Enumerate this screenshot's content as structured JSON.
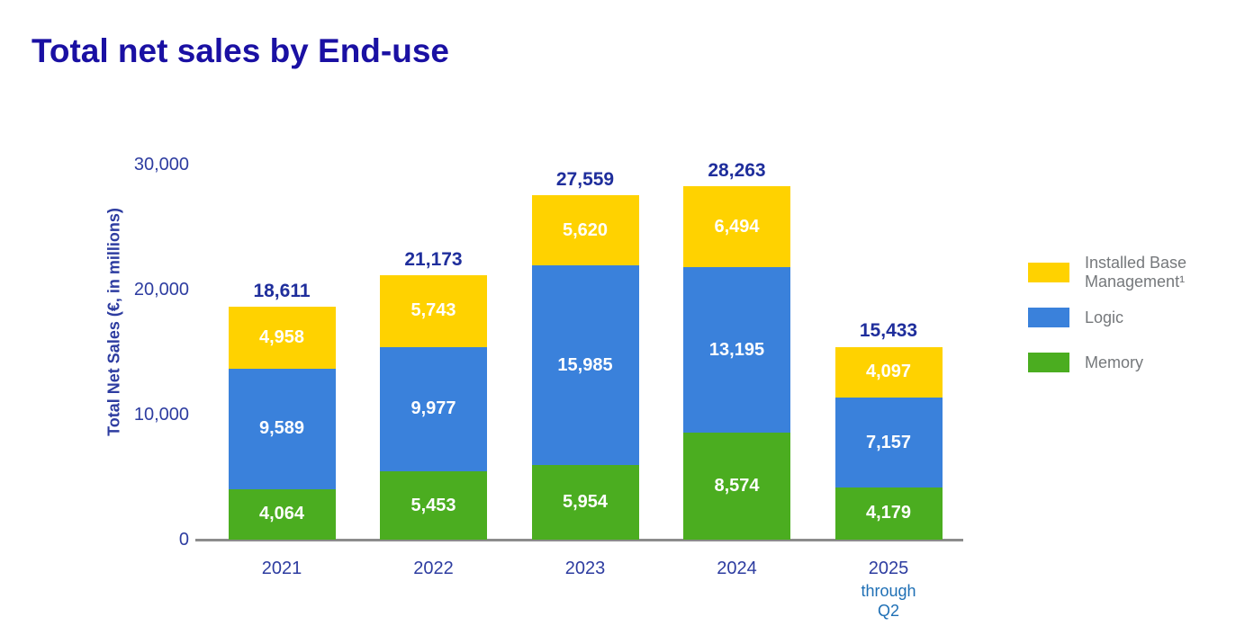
{
  "page": {
    "title": "Total net sales by End-use"
  },
  "chart_data": {
    "type": "bar",
    "stacked": true,
    "title": "Total net sales by End-use",
    "ylabel": "Total Net Sales (€, in millions)",
    "ylim": [
      0,
      30000
    ],
    "grid": false,
    "legend_position": "right",
    "yticks": [
      {
        "value": 0,
        "label": "0"
      },
      {
        "value": 10000,
        "label": "10,000"
      },
      {
        "value": 20000,
        "label": "20,000"
      },
      {
        "value": 30000,
        "label": "30,000"
      }
    ],
    "categories": [
      {
        "label": "2021",
        "sublines": []
      },
      {
        "label": "2022",
        "sublines": []
      },
      {
        "label": "2023",
        "sublines": []
      },
      {
        "label": "2024",
        "sublines": []
      },
      {
        "label": "2025",
        "sublines": [
          "through",
          "Q2"
        ]
      }
    ],
    "series": [
      {
        "key": "memory",
        "name": "Memory",
        "color": "#4bad20",
        "values": [
          4064,
          5453,
          5954,
          8574,
          4179
        ],
        "labels": [
          "4,064",
          "5,453",
          "5,954",
          "8,574",
          "4,179"
        ]
      },
      {
        "key": "logic",
        "name": "Logic",
        "color": "#3a81db",
        "values": [
          9589,
          9977,
          15985,
          13195,
          7157
        ],
        "labels": [
          "9,589",
          "9,977",
          "15,985",
          "13,195",
          "7,157"
        ]
      },
      {
        "key": "installed-base-management",
        "name": "Installed Base Management¹",
        "color": "#ffd200",
        "values": [
          4958,
          5743,
          5620,
          6494,
          4097
        ],
        "labels": [
          "4,958",
          "5,743",
          "5,620",
          "6,494",
          "4,097"
        ]
      }
    ],
    "totals": [
      18611,
      21173,
      27559,
      28263,
      15433
    ],
    "total_labels": [
      "18,611",
      "21,173",
      "27,559",
      "28,263",
      "15,433"
    ],
    "legend": [
      {
        "key": "installed-base-management",
        "label": "Installed Base Management¹",
        "color": "#ffd200"
      },
      {
        "key": "logic",
        "label": "Logic",
        "color": "#3a81db"
      },
      {
        "key": "memory",
        "label": "Memory",
        "color": "#4bad20"
      }
    ]
  }
}
